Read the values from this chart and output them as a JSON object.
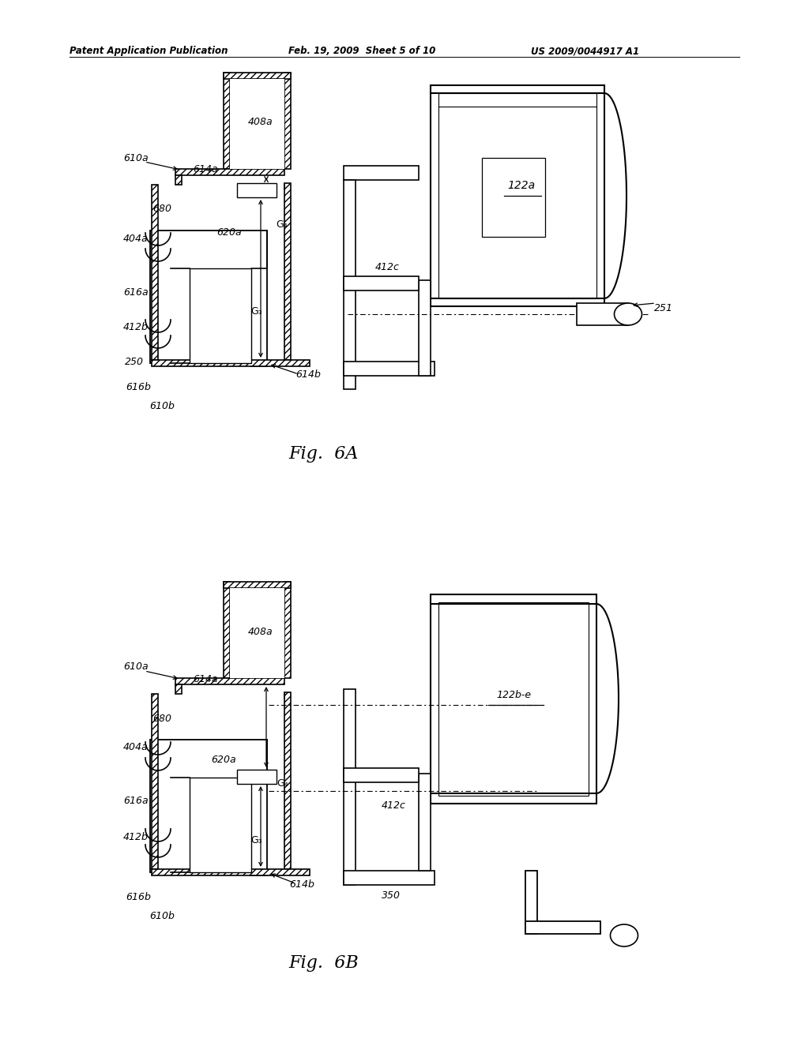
{
  "header_left": "Patent Application Publication",
  "header_mid": "Feb. 19, 2009  Sheet 5 of 10",
  "header_right": "US 2009/0044917 A1",
  "bg_color": "#ffffff"
}
